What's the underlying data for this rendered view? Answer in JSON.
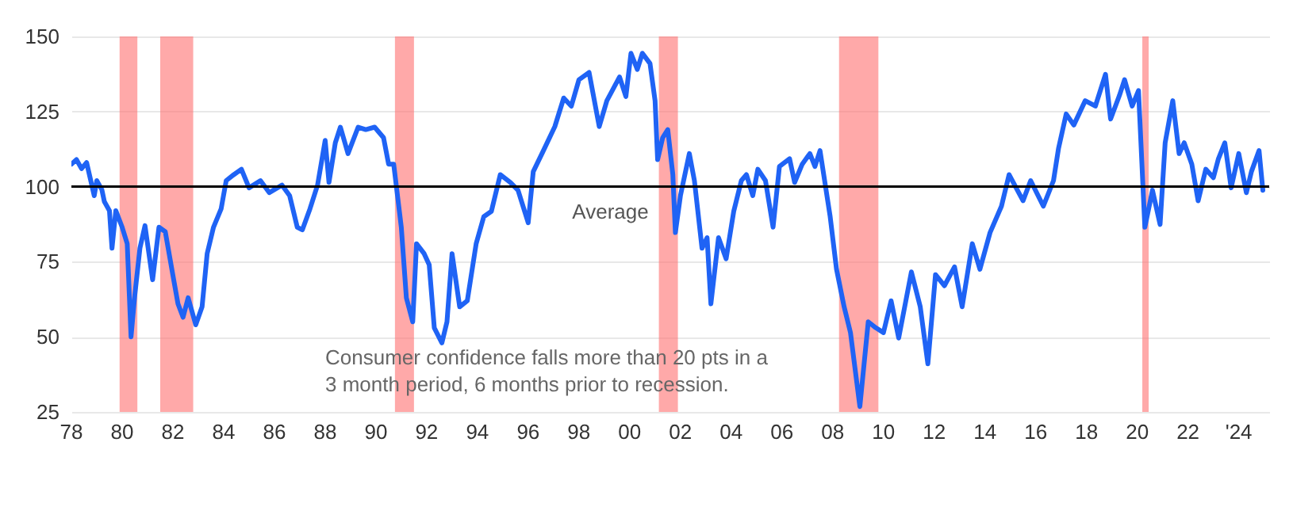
{
  "chart_data": {
    "type": "line",
    "x": [
      1978.0,
      1978.2,
      1978.4,
      1978.6,
      1978.9,
      1979.0,
      1979.2,
      1979.3,
      1979.5,
      1979.6,
      1979.75,
      1980.0,
      1980.2,
      1980.35,
      1980.5,
      1980.7,
      1980.9,
      1981.2,
      1981.45,
      1981.7,
      1982.0,
      1982.2,
      1982.4,
      1982.6,
      1982.9,
      1983.15,
      1983.35,
      1983.6,
      1983.9,
      1984.1,
      1984.4,
      1984.7,
      1985.0,
      1985.45,
      1985.8,
      1986.3,
      1986.6,
      1986.9,
      1987.1,
      1987.4,
      1987.7,
      1988.0,
      1988.15,
      1988.4,
      1988.6,
      1988.9,
      1989.3,
      1989.6,
      1989.95,
      1990.3,
      1990.5,
      1990.7,
      1991.0,
      1991.2,
      1991.45,
      1991.6,
      1991.9,
      1992.1,
      1992.3,
      1992.6,
      1992.8,
      1993.0,
      1993.3,
      1993.6,
      1993.95,
      1994.25,
      1994.55,
      1994.9,
      1995.3,
      1995.6,
      1996.0,
      1996.2,
      1996.6,
      1997.05,
      1997.4,
      1997.7,
      1998.0,
      1998.4,
      1998.8,
      1999.1,
      1999.6,
      1999.85,
      2000.05,
      2000.3,
      2000.5,
      2000.8,
      2001.0,
      2001.1,
      2001.3,
      2001.5,
      2001.7,
      2001.8,
      2002.0,
      2002.35,
      2002.55,
      2002.85,
      2003.05,
      2003.2,
      2003.5,
      2003.8,
      2004.1,
      2004.4,
      2004.6,
      2004.85,
      2005.05,
      2005.35,
      2005.65,
      2005.9,
      2006.3,
      2006.5,
      2006.8,
      2007.1,
      2007.3,
      2007.5,
      2007.9,
      2008.15,
      2008.45,
      2008.7,
      2009.07,
      2009.4,
      2009.7,
      2010.0,
      2010.3,
      2010.6,
      2011.1,
      2011.45,
      2011.75,
      2012.05,
      2012.4,
      2012.8,
      2013.1,
      2013.5,
      2013.8,
      2014.2,
      2014.65,
      2014.95,
      2015.5,
      2015.8,
      2016.3,
      2016.7,
      2016.9,
      2017.2,
      2017.5,
      2017.95,
      2018.35,
      2018.75,
      2018.95,
      2019.3,
      2019.5,
      2019.8,
      2020.05,
      2020.3,
      2020.6,
      2020.9,
      2021.1,
      2021.4,
      2021.65,
      2021.85,
      2022.15,
      2022.4,
      2022.7,
      2023.0,
      2023.2,
      2023.45,
      2023.7,
      2024.0,
      2024.3,
      2024.5,
      2024.8,
      2024.95
    ],
    "series": [
      {
        "color": "#1f63f5",
        "values": [
          107.5,
          109,
          106,
          108,
          97,
          102,
          99,
          95,
          92,
          79.5,
          92,
          86.5,
          81,
          50,
          64,
          79.5,
          87,
          69,
          86.5,
          85,
          70.5,
          61,
          56.5,
          63,
          54,
          60,
          77.7,
          86.5,
          92.6,
          102,
          104,
          105.8,
          99.6,
          102,
          98,
          100.5,
          97,
          86.5,
          85.6,
          92.6,
          100.5,
          115.4,
          101.4,
          114.6,
          119.8,
          111,
          119.8,
          119,
          119.8,
          116.3,
          107.5,
          107.5,
          86.5,
          63,
          55,
          81,
          77.7,
          74,
          53,
          48,
          55,
          77.7,
          60,
          62,
          81,
          90,
          91.8,
          104,
          101.4,
          98.8,
          88,
          105,
          112,
          120,
          129.5,
          126.8,
          135.6,
          138,
          120,
          128.6,
          136.5,
          130,
          144.4,
          139,
          144.4,
          141,
          128.6,
          109,
          116.3,
          119,
          104,
          84.7,
          97,
          111,
          102,
          79.5,
          83,
          61,
          83,
          76,
          91.8,
          102,
          104,
          97,
          105.8,
          102,
          86.5,
          106.7,
          109.3,
          101.4,
          107.5,
          111,
          106.7,
          112,
          90,
          72.5,
          60,
          51.4,
          26.8,
          55,
          53,
          51.4,
          62,
          49.6,
          71.6,
          60,
          41,
          70.7,
          67,
          73.3,
          60,
          81,
          72.5,
          84.7,
          93.5,
          104,
          95.3,
          102,
          93.5,
          102,
          112.8,
          124.2,
          120.5,
          128.6,
          126.8,
          137.4,
          122.5,
          130.4,
          135.6,
          126.8,
          132,
          86.5,
          98.8,
          87.4,
          114.6,
          128.6,
          111,
          114.6,
          107.5,
          95.3,
          105.8,
          103,
          109.3,
          114.6,
          99.6,
          111,
          98,
          105,
          112,
          98.8
        ]
      }
    ],
    "xlim": [
      1978,
      2025.2
    ],
    "xticks": [
      {
        "value": 1978,
        "label": "78"
      },
      {
        "value": 1980,
        "label": "80"
      },
      {
        "value": 1982,
        "label": "82"
      },
      {
        "value": 1984,
        "label": "84"
      },
      {
        "value": 1986,
        "label": "86"
      },
      {
        "value": 1988,
        "label": "88"
      },
      {
        "value": 1990,
        "label": "90"
      },
      {
        "value": 1992,
        "label": "92"
      },
      {
        "value": 1994,
        "label": "94"
      },
      {
        "value": 1996,
        "label": "96"
      },
      {
        "value": 1998,
        "label": "98"
      },
      {
        "value": 2000,
        "label": "00"
      },
      {
        "value": 2002,
        "label": "02"
      },
      {
        "value": 2004,
        "label": "04"
      },
      {
        "value": 2006,
        "label": "06"
      },
      {
        "value": 2008,
        "label": "08"
      },
      {
        "value": 2010,
        "label": "10"
      },
      {
        "value": 2012,
        "label": "12"
      },
      {
        "value": 2014,
        "label": "14"
      },
      {
        "value": 2016,
        "label": "16"
      },
      {
        "value": 2018,
        "label": "18"
      },
      {
        "value": 2020,
        "label": "20"
      },
      {
        "value": 2022,
        "label": "22"
      },
      {
        "value": 2024,
        "label": "'24"
      }
    ],
    "ylim": [
      25,
      150
    ],
    "yticks": [
      25,
      50,
      75,
      100,
      125,
      150
    ],
    "grid": "y",
    "ref_lines": [
      {
        "axis": "y",
        "value": 100,
        "label": "Average",
        "color": "#000000"
      }
    ],
    "bands": [
      {
        "axis": "x",
        "from": 1979.9,
        "to": 1980.6,
        "color": "#ff7070"
      },
      {
        "axis": "x",
        "from": 1981.5,
        "to": 1982.8,
        "color": "#ff7070"
      },
      {
        "axis": "x",
        "from": 1990.75,
        "to": 1991.5,
        "color": "#ff7070"
      },
      {
        "axis": "x",
        "from": 2001.15,
        "to": 2001.9,
        "color": "#ff7070"
      },
      {
        "axis": "x",
        "from": 2008.25,
        "to": 2009.8,
        "color": "#ff7070"
      },
      {
        "axis": "x",
        "from": 2020.2,
        "to": 2020.45,
        "color": "#ff7070"
      }
    ],
    "annotations": [
      "Consumer confidence falls more than 20 pts in a 3 month period, 6 months prior to recession."
    ]
  }
}
